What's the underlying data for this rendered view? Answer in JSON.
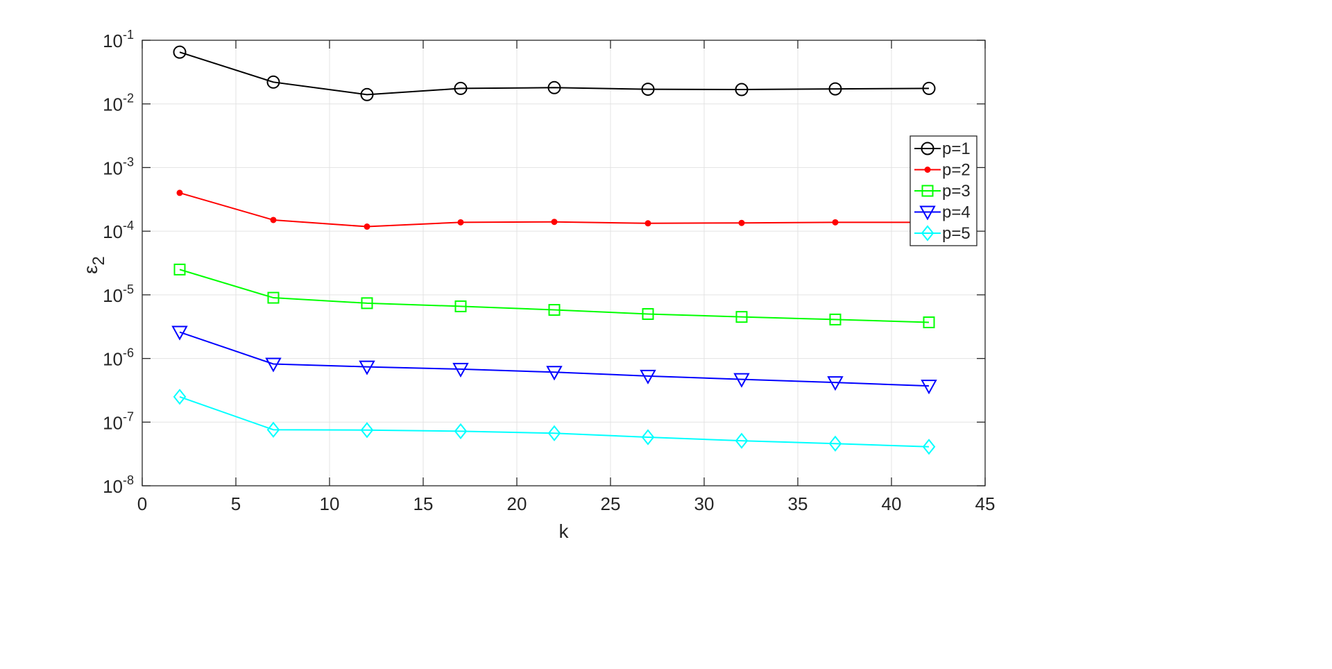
{
  "chart_data": {
    "type": "line",
    "xlabel": "k",
    "ylabel": "ε",
    "ylabel_subscript": "2",
    "xlim": [
      0,
      45
    ],
    "ylim": [
      1e-08,
      0.1
    ],
    "yscale": "log",
    "grid": true,
    "legend_position": "right",
    "x": [
      2,
      7,
      12,
      17,
      22,
      27,
      32,
      37,
      42
    ],
    "x_ticks": [
      0,
      5,
      10,
      15,
      20,
      25,
      30,
      35,
      40,
      45
    ],
    "x_tick_labels": [
      "0",
      "5",
      "10",
      "15",
      "20",
      "25",
      "30",
      "35",
      "40",
      "45"
    ],
    "y_ticks": [
      {
        "value": 0.1,
        "base": "10",
        "exp": "-1"
      },
      {
        "value": 0.01,
        "base": "10",
        "exp": "-2"
      },
      {
        "value": 0.001,
        "base": "10",
        "exp": "-3"
      },
      {
        "value": 0.0001,
        "base": "10",
        "exp": "-4"
      },
      {
        "value": 1e-05,
        "base": "10",
        "exp": "-5"
      },
      {
        "value": 1e-06,
        "base": "10",
        "exp": "-6"
      },
      {
        "value": 1e-07,
        "base": "10",
        "exp": "-7"
      },
      {
        "value": 1e-08,
        "base": "10",
        "exp": "-8"
      }
    ],
    "series": [
      {
        "name": "p=1",
        "color": "#000000",
        "marker": "circle",
        "values": [
          0.065,
          0.022,
          0.014,
          0.0175,
          0.018,
          0.017,
          0.0168,
          0.0172,
          0.0175
        ]
      },
      {
        "name": "p=2",
        "color": "#ff0000",
        "marker": "dot",
        "values": [
          0.0004,
          0.00015,
          0.000118,
          0.000138,
          0.00014,
          0.000133,
          0.000135,
          0.000138,
          0.000138
        ]
      },
      {
        "name": "p=3",
        "color": "#00ff00",
        "marker": "square",
        "values": [
          2.5e-05,
          9e-06,
          7.4e-06,
          6.6e-06,
          5.8e-06,
          5e-06,
          4.5e-06,
          4.1e-06,
          3.7e-06
        ]
      },
      {
        "name": "p=4",
        "color": "#0000ff",
        "marker": "triangle-down",
        "values": [
          2.6e-06,
          8.2e-07,
          7.4e-07,
          6.8e-07,
          6.1e-07,
          5.3e-07,
          4.7e-07,
          4.2e-07,
          3.7e-07
        ]
      },
      {
        "name": "p=5",
        "color": "#00ffff",
        "marker": "diamond",
        "values": [
          2.5e-07,
          7.6e-08,
          7.5e-08,
          7.2e-08,
          6.7e-08,
          5.8e-08,
          5.1e-08,
          4.6e-08,
          4.1e-08
        ]
      }
    ]
  }
}
